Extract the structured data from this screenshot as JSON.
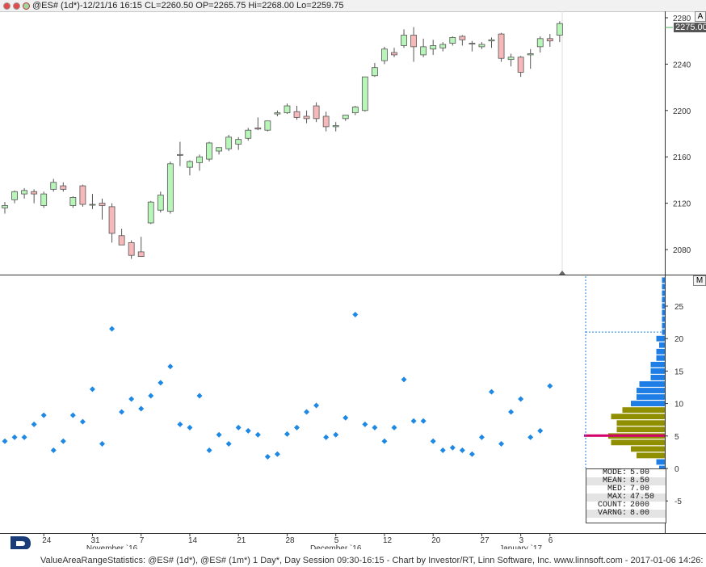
{
  "window": {
    "title": "@ES# (1d*)-12/21/16 16:15 CL=2260.50 OP=2265.75 Hi=2268.00 Lo=2259.75",
    "dot_colors": [
      "#e34b4b",
      "#9fd59f"
    ]
  },
  "price_panel": {
    "button_label": "A",
    "last_price": "2275.00",
    "y_ticks": [
      "2280",
      "2240",
      "2200",
      "2160",
      "2120",
      "2080"
    ],
    "y_range": [
      2060,
      2288
    ],
    "up_color": "#b8f5b8",
    "down_color": "#f6b8b8"
  },
  "stat_panel": {
    "button_label": "M",
    "y_ticks": [
      "25",
      "20",
      "15",
      "10",
      "5",
      "0",
      "-5"
    ],
    "y_range": [
      -9,
      30
    ],
    "dot_color": "#1e88e5",
    "dots": [
      4.2,
      4.8,
      4.8,
      6.8,
      8.2,
      2.8,
      4.2,
      8.2,
      7.2,
      12.2,
      3.8,
      21.5,
      8.7,
      10.7,
      9.2,
      11.2,
      13.2,
      15.7,
      6.8,
      6.3,
      11.2,
      2.8,
      5.2,
      3.8,
      6.3,
      5.8,
      5.2,
      1.8,
      2.2,
      5.3,
      6.3,
      8.7,
      9.7,
      4.8,
      5.2,
      7.8,
      23.7,
      6.8,
      6.3,
      4.2,
      6.3,
      13.7,
      7.3,
      7.3,
      4.2,
      2.8,
      3.2,
      2.8,
      2.2,
      4.8,
      11.8,
      3.8,
      8.7,
      10.7,
      4.8,
      5.8,
      12.7
    ],
    "histogram": {
      "bin_values": [
        0,
        1,
        2,
        3,
        4,
        5,
        6,
        7,
        8,
        9,
        10,
        11,
        12,
        13,
        14,
        15,
        16,
        17,
        18,
        19,
        20,
        21,
        22,
        23,
        24,
        25,
        26,
        27,
        28,
        29
      ],
      "bin_counts": [
        2,
        3,
        10,
        12,
        19,
        20,
        17,
        17,
        19,
        15,
        12,
        10,
        10,
        9,
        5,
        5,
        5,
        3,
        3,
        2,
        3,
        1,
        1,
        1,
        1,
        1,
        1,
        1,
        1,
        1
      ],
      "value_area_bins": [
        2,
        3,
        4,
        5,
        6,
        7,
        8,
        9
      ],
      "mode_bin": 5,
      "blue_color": "#1e7ee6",
      "olive_color": "#8f8f00",
      "mode_color": "#d4006a",
      "value_area_high": 21,
      "value_area_low": 0
    },
    "stats": [
      {
        "key": "MODE:",
        "val": "5.00"
      },
      {
        "key": "MEAN:",
        "val": "8.50"
      },
      {
        "key": "MED:",
        "val": "7.00"
      },
      {
        "key": "MAX:",
        "val": "47.50"
      },
      {
        "key": "COUNT:",
        "val": "2000"
      },
      {
        "key": "VARNG:",
        "val": "8.00"
      }
    ]
  },
  "x_axis": {
    "ticks": [
      {
        "label": "24",
        "bar": 4
      },
      {
        "label": "31",
        "bar": 9
      },
      {
        "label": "7",
        "bar": 14
      },
      {
        "label": "14",
        "bar": 19
      },
      {
        "label": "21",
        "bar": 24
      },
      {
        "label": "28",
        "bar": 29
      },
      {
        "label": "5",
        "bar": 34
      },
      {
        "label": "12",
        "bar": 39
      },
      {
        "label": "20",
        "bar": 44
      },
      {
        "label": "27",
        "bar": 49
      },
      {
        "label": "3",
        "bar": 53
      },
      {
        "label": "6",
        "bar": 56
      }
    ],
    "months": [
      {
        "label": "November `16",
        "bar": 11
      },
      {
        "label": "December `16",
        "bar": 34
      },
      {
        "label": "January `17",
        "bar": 53
      }
    ]
  },
  "candles": [
    [
      2116,
      2121,
      2111,
      2118
    ],
    [
      2123,
      2131,
      2120,
      2130
    ],
    [
      2128,
      2133,
      2124,
      2131
    ],
    [
      2130,
      2132,
      2120,
      2128
    ],
    [
      2118,
      2130,
      2116,
      2128
    ],
    [
      2132,
      2141,
      2130,
      2138
    ],
    [
      2135,
      2138,
      2130,
      2132
    ],
    [
      2118,
      2126,
      2116,
      2125
    ],
    [
      2135,
      2136,
      2117,
      2119
    ],
    [
      2119,
      2128,
      2115,
      2119
    ],
    [
      2120,
      2124,
      2106,
      2118
    ],
    [
      2117,
      2120,
      2086,
      2094
    ],
    [
      2092,
      2098,
      2084,
      2084
    ],
    [
      2086,
      2088,
      2072,
      2075
    ],
    [
      2078,
      2091,
      2075,
      2074
    ],
    [
      2103,
      2122,
      2102,
      2121
    ],
    [
      2114,
      2130,
      2112,
      2127
    ],
    [
      2113,
      2156,
      2111,
      2154
    ],
    [
      2162,
      2173,
      2152,
      2162
    ],
    [
      2151,
      2157,
      2144,
      2156
    ],
    [
      2155,
      2162,
      2148,
      2160
    ],
    [
      2158,
      2173,
      2156,
      2172
    ],
    [
      2165,
      2167,
      2162,
      2168
    ],
    [
      2167,
      2179,
      2165,
      2177
    ],
    [
      2171,
      2177,
      2166,
      2175
    ],
    [
      2176,
      2185,
      2174,
      2183
    ],
    [
      2185,
      2194,
      2183,
      2184
    ],
    [
      2183,
      2191,
      2182,
      2191
    ],
    [
      2197,
      2200,
      2195,
      2198
    ],
    [
      2198,
      2206,
      2197,
      2204
    ],
    [
      2199,
      2204,
      2192,
      2194
    ],
    [
      2195,
      2200,
      2189,
      2193
    ],
    [
      2204,
      2207,
      2190,
      2193
    ],
    [
      2195,
      2199,
      2182,
      2186
    ],
    [
      2186,
      2190,
      2182,
      2187
    ],
    [
      2193,
      2196,
      2191,
      2196
    ],
    [
      2198,
      2204,
      2196,
      2203
    ],
    [
      2200,
      2229,
      2199,
      2229
    ],
    [
      2230,
      2241,
      2229,
      2237
    ],
    [
      2243,
      2255,
      2240,
      2253
    ],
    [
      2250,
      2254,
      2246,
      2248
    ],
    [
      2256,
      2270,
      2254,
      2265
    ],
    [
      2265,
      2272,
      2242,
      2255
    ],
    [
      2248,
      2262,
      2246,
      2255
    ],
    [
      2253,
      2261,
      2248,
      2256
    ],
    [
      2254,
      2259,
      2251,
      2257
    ],
    [
      2258,
      2264,
      2256,
      2263
    ],
    [
      2264,
      2265,
      2256,
      2261
    ],
    [
      2258,
      2260,
      2251,
      2258
    ],
    [
      2255,
      2259,
      2253,
      2257
    ],
    [
      2260,
      2263,
      2254,
      2261
    ],
    [
      2266,
      2267,
      2242,
      2245
    ],
    [
      2244,
      2249,
      2238,
      2246
    ],
    [
      2246,
      2247,
      2229,
      2233
    ],
    [
      2248,
      2253,
      2236,
      2249
    ],
    [
      2255,
      2264,
      2250,
      2262
    ],
    [
      2262,
      2266,
      2255,
      2260
    ],
    [
      2265,
      2277,
      2259,
      2275
    ]
  ],
  "footer": {
    "text": "ValueAreaRangeStatistics: @ES# (1d*), @ES# (1m*) 1 Day*, Day Session 09:30-16:15 - Chart by Investor/RT, Linn Software, Inc. www.linnsoft.com - 2017-01-06 14:26:"
  }
}
